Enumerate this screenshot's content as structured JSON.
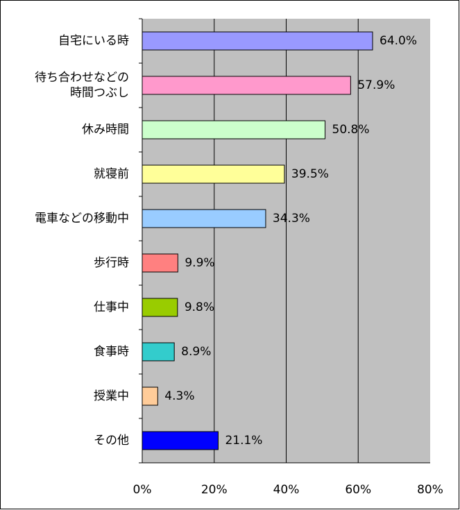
{
  "chart_data": {
    "type": "bar",
    "orientation": "horizontal",
    "categories": [
      "自宅にいる時",
      "待ち合わせなどの\n時間つぶし",
      "休み時間",
      "就寝前",
      "電車などの移動中",
      "歩行時",
      "仕事中",
      "食事時",
      "授業中",
      "その他"
    ],
    "values": [
      64.0,
      57.9,
      50.8,
      39.5,
      34.3,
      9.9,
      9.8,
      8.9,
      4.3,
      21.1
    ],
    "value_labels": [
      "64.0%",
      "57.9%",
      "50.8%",
      "39.5%",
      "34.3%",
      "9.9%",
      "9.8%",
      "8.9%",
      "4.3%",
      "21.1%"
    ],
    "colors": [
      "#9999ff",
      "#ff99cc",
      "#ccffcc",
      "#ffff99",
      "#99ccff",
      "#ff8080",
      "#99cc00",
      "#33cccc",
      "#ffcc99",
      "#0000ff"
    ],
    "xlim": [
      0,
      80
    ],
    "xticks": [
      {
        "value": 0,
        "label": "0%"
      },
      {
        "value": 20,
        "label": "20%"
      },
      {
        "value": 40,
        "label": "40%"
      },
      {
        "value": 60,
        "label": "60%"
      },
      {
        "value": 80,
        "label": "80%"
      }
    ],
    "grid": true
  }
}
